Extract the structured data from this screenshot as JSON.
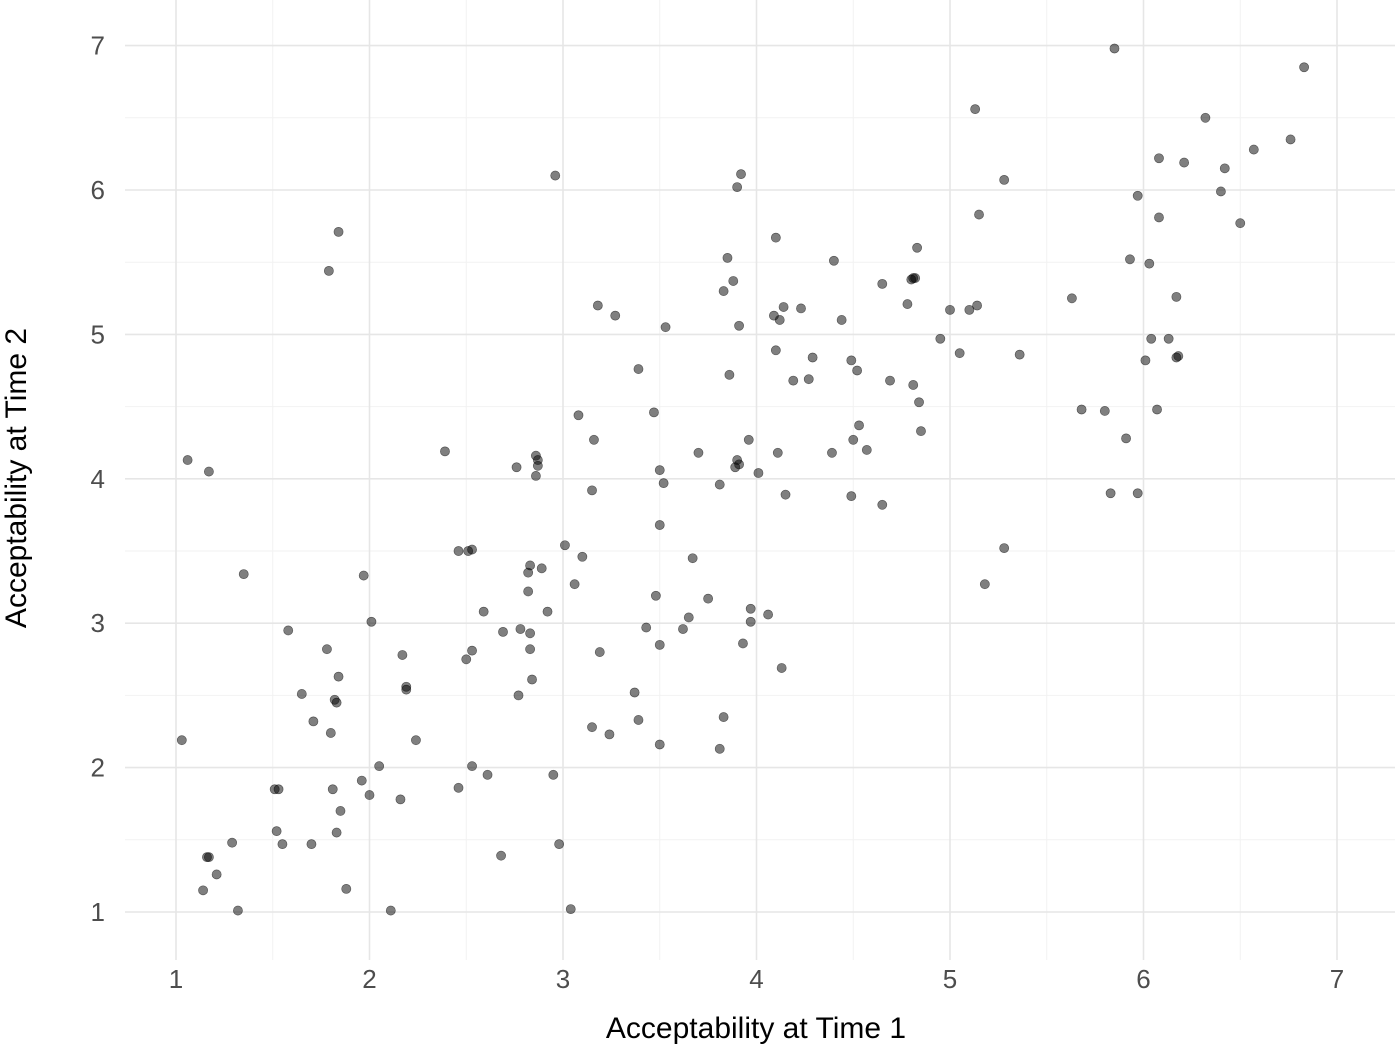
{
  "chart_data": {
    "type": "scatter",
    "title": "",
    "xlabel": "Acceptability at Time 1",
    "ylabel": "Acceptability at Time 2",
    "xlim": [
      0.75,
      7.25
    ],
    "ylim": [
      0.7,
      7.2
    ],
    "x_ticks": [
      "1",
      "2",
      "3",
      "4",
      "5",
      "6",
      "7"
    ],
    "y_ticks": [
      "1",
      "2",
      "3",
      "4",
      "5",
      "6",
      "7"
    ],
    "grid": true,
    "legend": "none",
    "point_color": "#000000",
    "points": [
      [
        1.03,
        2.19
      ],
      [
        1.06,
        4.13
      ],
      [
        1.17,
        4.05
      ],
      [
        1.14,
        1.15
      ],
      [
        1.16,
        1.38
      ],
      [
        1.17,
        1.38
      ],
      [
        1.21,
        1.26
      ],
      [
        1.29,
        1.48
      ],
      [
        1.32,
        1.01
      ],
      [
        1.35,
        3.34
      ],
      [
        1.51,
        1.85
      ],
      [
        1.53,
        1.85
      ],
      [
        1.52,
        1.56
      ],
      [
        1.55,
        1.47
      ],
      [
        1.58,
        2.95
      ],
      [
        1.65,
        2.51
      ],
      [
        1.7,
        1.47
      ],
      [
        1.71,
        2.32
      ],
      [
        1.78,
        2.82
      ],
      [
        1.79,
        5.44
      ],
      [
        1.8,
        2.24
      ],
      [
        1.81,
        1.85
      ],
      [
        1.82,
        2.47
      ],
      [
        1.83,
        2.45
      ],
      [
        1.83,
        1.55
      ],
      [
        1.84,
        5.71
      ],
      [
        1.84,
        2.63
      ],
      [
        1.85,
        1.7
      ],
      [
        1.88,
        1.16
      ],
      [
        1.96,
        1.91
      ],
      [
        1.97,
        3.33
      ],
      [
        2.0,
        1.81
      ],
      [
        2.01,
        3.01
      ],
      [
        2.05,
        2.01
      ],
      [
        2.11,
        1.01
      ],
      [
        2.16,
        1.78
      ],
      [
        2.17,
        2.78
      ],
      [
        2.19,
        2.56
      ],
      [
        2.19,
        2.54
      ],
      [
        2.24,
        2.19
      ],
      [
        2.39,
        4.19
      ],
      [
        2.46,
        1.86
      ],
      [
        2.46,
        3.5
      ],
      [
        2.5,
        2.75
      ],
      [
        2.51,
        3.5
      ],
      [
        2.53,
        3.51
      ],
      [
        2.53,
        2.81
      ],
      [
        2.53,
        2.01
      ],
      [
        2.59,
        3.08
      ],
      [
        2.61,
        1.95
      ],
      [
        2.68,
        1.39
      ],
      [
        2.69,
        2.94
      ],
      [
        2.76,
        4.08
      ],
      [
        2.77,
        2.5
      ],
      [
        2.78,
        2.96
      ],
      [
        2.82,
        3.35
      ],
      [
        2.82,
        3.22
      ],
      [
        2.83,
        3.4
      ],
      [
        2.83,
        2.82
      ],
      [
        2.83,
        2.93
      ],
      [
        2.84,
        2.61
      ],
      [
        2.86,
        4.02
      ],
      [
        2.86,
        4.16
      ],
      [
        2.87,
        4.09
      ],
      [
        2.87,
        4.13
      ],
      [
        2.89,
        3.38
      ],
      [
        2.92,
        3.08
      ],
      [
        2.95,
        1.95
      ],
      [
        2.96,
        6.1
      ],
      [
        2.98,
        1.47
      ],
      [
        3.01,
        3.54
      ],
      [
        3.04,
        1.02
      ],
      [
        3.06,
        3.27
      ],
      [
        3.08,
        4.44
      ],
      [
        3.1,
        3.46
      ],
      [
        3.15,
        3.92
      ],
      [
        3.15,
        2.28
      ],
      [
        3.16,
        4.27
      ],
      [
        3.18,
        5.2
      ],
      [
        3.19,
        2.8
      ],
      [
        3.24,
        2.23
      ],
      [
        3.27,
        5.13
      ],
      [
        3.37,
        2.52
      ],
      [
        3.39,
        2.33
      ],
      [
        3.39,
        4.76
      ],
      [
        3.43,
        2.97
      ],
      [
        3.47,
        4.46
      ],
      [
        3.48,
        3.19
      ],
      [
        3.5,
        2.16
      ],
      [
        3.5,
        2.85
      ],
      [
        3.5,
        3.68
      ],
      [
        3.5,
        4.06
      ],
      [
        3.52,
        3.97
      ],
      [
        3.53,
        5.05
      ],
      [
        3.62,
        2.96
      ],
      [
        3.65,
        3.04
      ],
      [
        3.67,
        3.45
      ],
      [
        3.7,
        4.18
      ],
      [
        3.75,
        3.17
      ],
      [
        3.81,
        3.96
      ],
      [
        3.81,
        2.13
      ],
      [
        3.83,
        2.35
      ],
      [
        3.83,
        5.3
      ],
      [
        3.85,
        5.53
      ],
      [
        3.86,
        4.72
      ],
      [
        3.88,
        5.37
      ],
      [
        3.89,
        4.08
      ],
      [
        3.9,
        6.02
      ],
      [
        3.9,
        4.13
      ],
      [
        3.91,
        4.1
      ],
      [
        3.91,
        5.06
      ],
      [
        3.92,
        6.11
      ],
      [
        3.93,
        2.86
      ],
      [
        3.96,
        4.27
      ],
      [
        3.97,
        3.1
      ],
      [
        3.97,
        3.01
      ],
      [
        4.01,
        4.04
      ],
      [
        4.06,
        3.06
      ],
      [
        4.09,
        5.13
      ],
      [
        4.1,
        4.89
      ],
      [
        4.1,
        5.67
      ],
      [
        4.11,
        4.18
      ],
      [
        4.12,
        5.1
      ],
      [
        4.13,
        2.69
      ],
      [
        4.14,
        5.19
      ],
      [
        4.15,
        3.89
      ],
      [
        4.19,
        4.68
      ],
      [
        4.23,
        5.18
      ],
      [
        4.27,
        4.69
      ],
      [
        4.29,
        4.84
      ],
      [
        4.39,
        4.18
      ],
      [
        4.4,
        5.51
      ],
      [
        4.44,
        5.1
      ],
      [
        4.49,
        4.82
      ],
      [
        4.49,
        3.88
      ],
      [
        4.5,
        4.27
      ],
      [
        4.52,
        4.75
      ],
      [
        4.53,
        4.37
      ],
      [
        4.57,
        4.2
      ],
      [
        4.65,
        3.82
      ],
      [
        4.65,
        5.35
      ],
      [
        4.69,
        4.68
      ],
      [
        4.78,
        5.21
      ],
      [
        4.8,
        5.38
      ],
      [
        4.81,
        5.39
      ],
      [
        4.82,
        5.39
      ],
      [
        4.81,
        4.65
      ],
      [
        4.83,
        5.6
      ],
      [
        4.84,
        4.53
      ],
      [
        4.85,
        4.33
      ],
      [
        4.95,
        4.97
      ],
      [
        5.0,
        5.17
      ],
      [
        5.05,
        4.87
      ],
      [
        5.1,
        5.17
      ],
      [
        5.13,
        6.56
      ],
      [
        5.14,
        5.2
      ],
      [
        5.15,
        5.83
      ],
      [
        5.18,
        3.27
      ],
      [
        5.28,
        6.07
      ],
      [
        5.28,
        3.52
      ],
      [
        5.36,
        4.86
      ],
      [
        5.63,
        5.25
      ],
      [
        5.68,
        4.48
      ],
      [
        5.8,
        4.47
      ],
      [
        5.83,
        3.9
      ],
      [
        5.85,
        6.98
      ],
      [
        5.91,
        4.28
      ],
      [
        5.93,
        5.52
      ],
      [
        5.97,
        3.9
      ],
      [
        5.97,
        5.96
      ],
      [
        6.01,
        4.82
      ],
      [
        6.03,
        5.49
      ],
      [
        6.04,
        4.97
      ],
      [
        6.07,
        4.48
      ],
      [
        6.08,
        6.22
      ],
      [
        6.08,
        5.81
      ],
      [
        6.13,
        4.97
      ],
      [
        6.17,
        5.26
      ],
      [
        6.17,
        4.84
      ],
      [
        6.18,
        4.85
      ],
      [
        6.21,
        6.19
      ],
      [
        6.32,
        6.5
      ],
      [
        6.4,
        5.99
      ],
      [
        6.42,
        6.15
      ],
      [
        6.5,
        5.77
      ],
      [
        6.57,
        6.28
      ],
      [
        6.76,
        6.35
      ],
      [
        6.83,
        6.85
      ]
    ]
  }
}
